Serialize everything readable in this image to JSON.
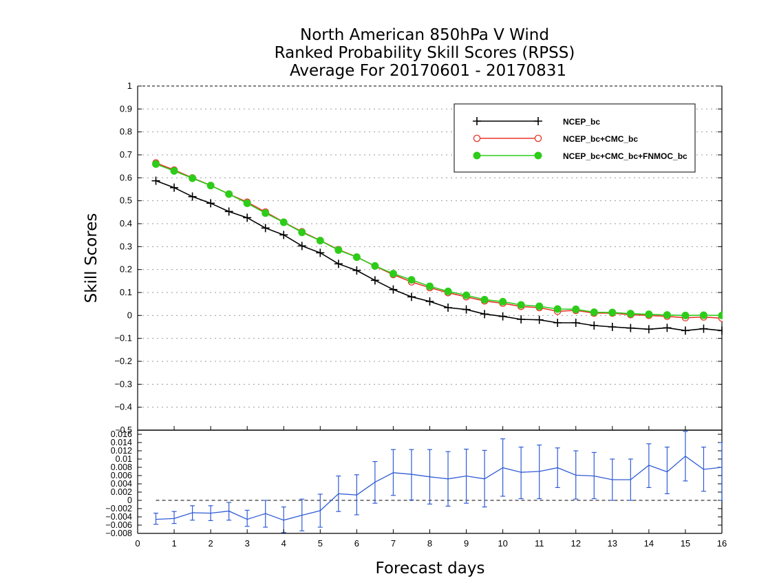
{
  "title_lines": [
    "North American 850hPa V Wind",
    "Ranked Probability Skill Scores (RPSS)",
    "Average For 20170601 - 20170831"
  ],
  "colors": {
    "ncep": "#000000",
    "ncep_cmc": "#e8342a",
    "ncep_cmc_fnmoc": "#2ecc1a",
    "diff": "#2f5bd6",
    "grid": "#9a9a9a"
  },
  "chart_data": [
    {
      "type": "line",
      "xlabel": "",
      "ylabel": "Skill Scores",
      "xlim": [
        0,
        16
      ],
      "ylim": [
        -0.5,
        1
      ],
      "y_ticks": [
        1,
        0.9,
        0.8,
        0.7,
        0.6,
        0.5,
        0.4,
        0.3,
        0.2,
        0.1,
        0,
        -0.1,
        -0.2,
        -0.3,
        -0.4
      ],
      "y_tick_labels": [
        "1",
        "0.9",
        "0.8",
        "0.7",
        "0.6",
        "0.5",
        "0.4",
        "0.3",
        "0.2",
        "0.1",
        "0",
        "−0.1",
        "−0.2",
        "−0.3",
        "−0.4"
      ],
      "grid": true,
      "legend_position": "top-right",
      "x": [
        0.5,
        1,
        1.5,
        2,
        2.5,
        3,
        3.5,
        4,
        4.5,
        5,
        5.5,
        6,
        6.5,
        7,
        7.5,
        8,
        8.5,
        9,
        9.5,
        10,
        10.5,
        11,
        11.5,
        12,
        12.5,
        13,
        13.5,
        14,
        14.5,
        15,
        15.5,
        16
      ],
      "series": [
        {
          "name": "NCEP_bc",
          "marker": "plus",
          "values": [
            0.587,
            0.557,
            0.518,
            0.489,
            0.453,
            0.426,
            0.381,
            0.351,
            0.303,
            0.273,
            0.225,
            0.196,
            0.153,
            0.113,
            0.081,
            0.061,
            0.034,
            0.026,
            0.006,
            -0.004,
            -0.017,
            -0.019,
            -0.032,
            -0.032,
            -0.044,
            -0.05,
            -0.055,
            -0.06,
            -0.054,
            -0.066,
            -0.058,
            -0.066
          ]
        },
        {
          "name": "NCEP_bc+CMC_bc",
          "marker": "open-circle",
          "values": [
            0.665,
            0.634,
            0.6,
            0.567,
            0.529,
            0.494,
            0.451,
            0.407,
            0.365,
            0.327,
            0.287,
            0.255,
            0.215,
            0.178,
            0.146,
            0.121,
            0.099,
            0.081,
            0.063,
            0.053,
            0.039,
            0.034,
            0.018,
            0.022,
            0.01,
            0.01,
            0.003,
            0.0,
            -0.004,
            -0.01,
            -0.007,
            -0.012
          ]
        },
        {
          "name": "NCEP_bc+CMC_bc+FNMOC_bc",
          "marker": "filled-circle",
          "values": [
            0.66,
            0.63,
            0.598,
            0.566,
            0.529,
            0.489,
            0.446,
            0.406,
            0.362,
            0.326,
            0.285,
            0.254,
            0.216,
            0.182,
            0.155,
            0.127,
            0.105,
            0.088,
            0.069,
            0.06,
            0.046,
            0.04,
            0.028,
            0.027,
            0.014,
            0.013,
            0.008,
            0.005,
            0.002,
            0.0,
            0.001,
            0.0
          ]
        }
      ]
    },
    {
      "type": "line",
      "xlabel": "Forecast days",
      "ylabel": "",
      "xlim": [
        0,
        16
      ],
      "ylim": [
        -0.008,
        0.017
      ],
      "x_ticks": [
        0,
        1,
        2,
        3,
        4,
        5,
        6,
        7,
        8,
        9,
        10,
        11,
        12,
        13,
        14,
        15,
        16
      ],
      "x_tick_labels": [
        "0",
        "1",
        "2",
        "3",
        "4",
        "5",
        "6",
        "7",
        "8",
        "9",
        "10",
        "11",
        "12",
        "13",
        "14",
        "15",
        "16"
      ],
      "y_ticks": [
        0.016,
        0.014,
        0.012,
        0.01,
        0.008,
        0.006,
        0.004,
        0.002,
        0,
        -0.002,
        -0.004,
        -0.006,
        -0.008
      ],
      "y_tick_labels": [
        "0.016",
        "0.014",
        "0.012",
        "0.01",
        "0.008",
        "0.006",
        "0.004",
        "0.002",
        "0",
        "−0.002",
        "−0.004",
        "−0.006",
        "−0.008"
      ],
      "top_boundary_label": "−0.5",
      "zero_line": true,
      "x": [
        0.5,
        1,
        1.5,
        2,
        2.5,
        3,
        3.5,
        4,
        4.5,
        5,
        5.5,
        6,
        6.5,
        7,
        7.5,
        8,
        8.5,
        9,
        9.5,
        10,
        10.5,
        11,
        11.5,
        12,
        12.5,
        13,
        13.5,
        14,
        14.5,
        15,
        15.5,
        16
      ],
      "series": [
        {
          "name": "",
          "values": [
            -0.0046,
            -0.0044,
            -0.003,
            -0.0031,
            -0.0026,
            -0.0046,
            -0.0032,
            -0.0048,
            -0.0036,
            -0.0025,
            0.0016,
            0.0013,
            0.0044,
            0.0067,
            0.0063,
            0.0057,
            0.0052,
            0.0059,
            0.0052,
            0.0079,
            0.0068,
            0.007,
            0.0079,
            0.0061,
            0.0059,
            0.005,
            0.005,
            0.0085,
            0.0069,
            0.0107,
            0.0075,
            0.008
          ],
          "lower": [
            -0.0058,
            -0.0056,
            -0.0048,
            -0.0049,
            -0.0048,
            -0.0063,
            -0.0065,
            -0.0078,
            -0.0074,
            -0.0065,
            -0.0027,
            -0.0035,
            -0.0007,
            0.0012,
            0.0001,
            -0.0009,
            -0.0014,
            -0.0007,
            -0.0016,
            0.001,
            0.0004,
            0.0004,
            0.0031,
            0.0003,
            0.0004,
            0.0,
            0.0,
            0.0031,
            0.0016,
            0.0047,
            0.0022,
            0.0
          ],
          "upper": [
            -0.0031,
            -0.0027,
            -0.0013,
            -0.0013,
            -0.0005,
            -0.0024,
            0.0,
            -0.0016,
            0.0003,
            0.0015,
            0.0059,
            0.0062,
            0.0094,
            0.0123,
            0.0123,
            0.0123,
            0.0118,
            0.0124,
            0.0121,
            0.0149,
            0.0129,
            0.0134,
            0.0127,
            0.012,
            0.0116,
            0.01,
            0.01,
            0.0137,
            0.0129,
            0.0167,
            0.0129,
            0.014
          ]
        }
      ]
    }
  ]
}
